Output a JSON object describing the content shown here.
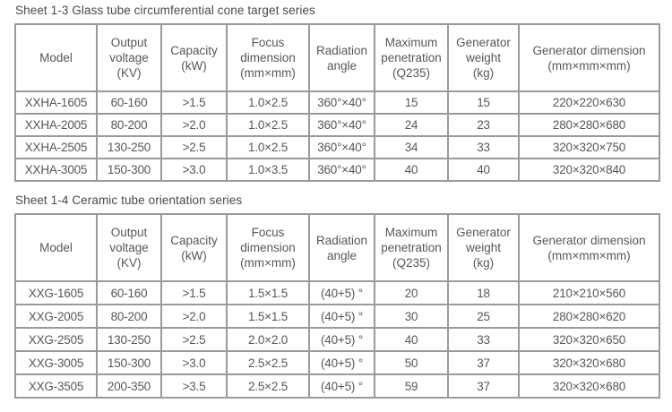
{
  "colors": {
    "background": "#ffffff",
    "border": "#9a9a9a",
    "cell_text": "#575757",
    "title_text": "#4a4a4a"
  },
  "tables": [
    {
      "name": "glass-tube-series",
      "title": "Sheet 1-3 Glass tube circumferential cone target series",
      "columns": [
        "Model",
        "Output\nvoltage\n(KV)",
        "Capacity\n(kW)",
        "Focus\ndimension\n(mm×mm)",
        "Radiation\nangle",
        "Maximum\npenetration\n(Q235)",
        "Generator\nweight\n(kg)",
        "Generator dimension\n(mm×mm×mm)"
      ],
      "rows": [
        [
          "XXHA-1605",
          "60-160",
          ">1.5",
          "1.0×2.5",
          "360°×40°",
          "15",
          "15",
          "220×220×630"
        ],
        [
          "XXHA-2005",
          "80-200",
          ">2.0",
          "1.0×2.5",
          "360°×40°",
          "24",
          "23",
          "280×280×680"
        ],
        [
          "XXHA-2505",
          "130-250",
          ">2.5",
          "1.0×2.5",
          "360°×40°",
          "34",
          "33",
          "320×320×750"
        ],
        [
          "XXHA-3005",
          "150-300",
          ">3.0",
          "1.0×3.5",
          "360°×40°",
          "40",
          "40",
          "320×320×840"
        ]
      ]
    },
    {
      "name": "ceramic-tube-series",
      "title": "Sheet 1-4 Ceramic tube orientation series",
      "columns": [
        "Model",
        "Output\nvoltage\n(KV)",
        "Capacity\n(kW)",
        "Focus\ndimension\n(mm×mm)",
        "Radiation\nangle",
        "Maximum\npenetration\n(Q235)",
        "Generator\nweight\n(kg)",
        "Generator dimension\n(mm×mm×mm)"
      ],
      "rows": [
        [
          "XXG-1605",
          "60-160",
          ">1.5",
          "1.5×1.5",
          "(40+5) °",
          "20",
          "18",
          "210×210×560"
        ],
        [
          "XXG-2005",
          "80-200",
          ">2.0",
          "1.5×1.5",
          "(40+5) °",
          "30",
          "25",
          "280×280×620"
        ],
        [
          "XXG-2505",
          "130-250",
          ">2.5",
          "2.0×2.0",
          "(40+5) °",
          "40",
          "33",
          "320×320×650"
        ],
        [
          "XXG-3005",
          "150-300",
          ">3.0",
          "2.5×2.5",
          "(40+5) °",
          "50",
          "37",
          "320×320×680"
        ],
        [
          "XXG-3505",
          "200-350",
          ">3.5",
          "2.5×2.5",
          "(40+5) °",
          "59",
          "37",
          "320×320×680"
        ]
      ]
    }
  ]
}
